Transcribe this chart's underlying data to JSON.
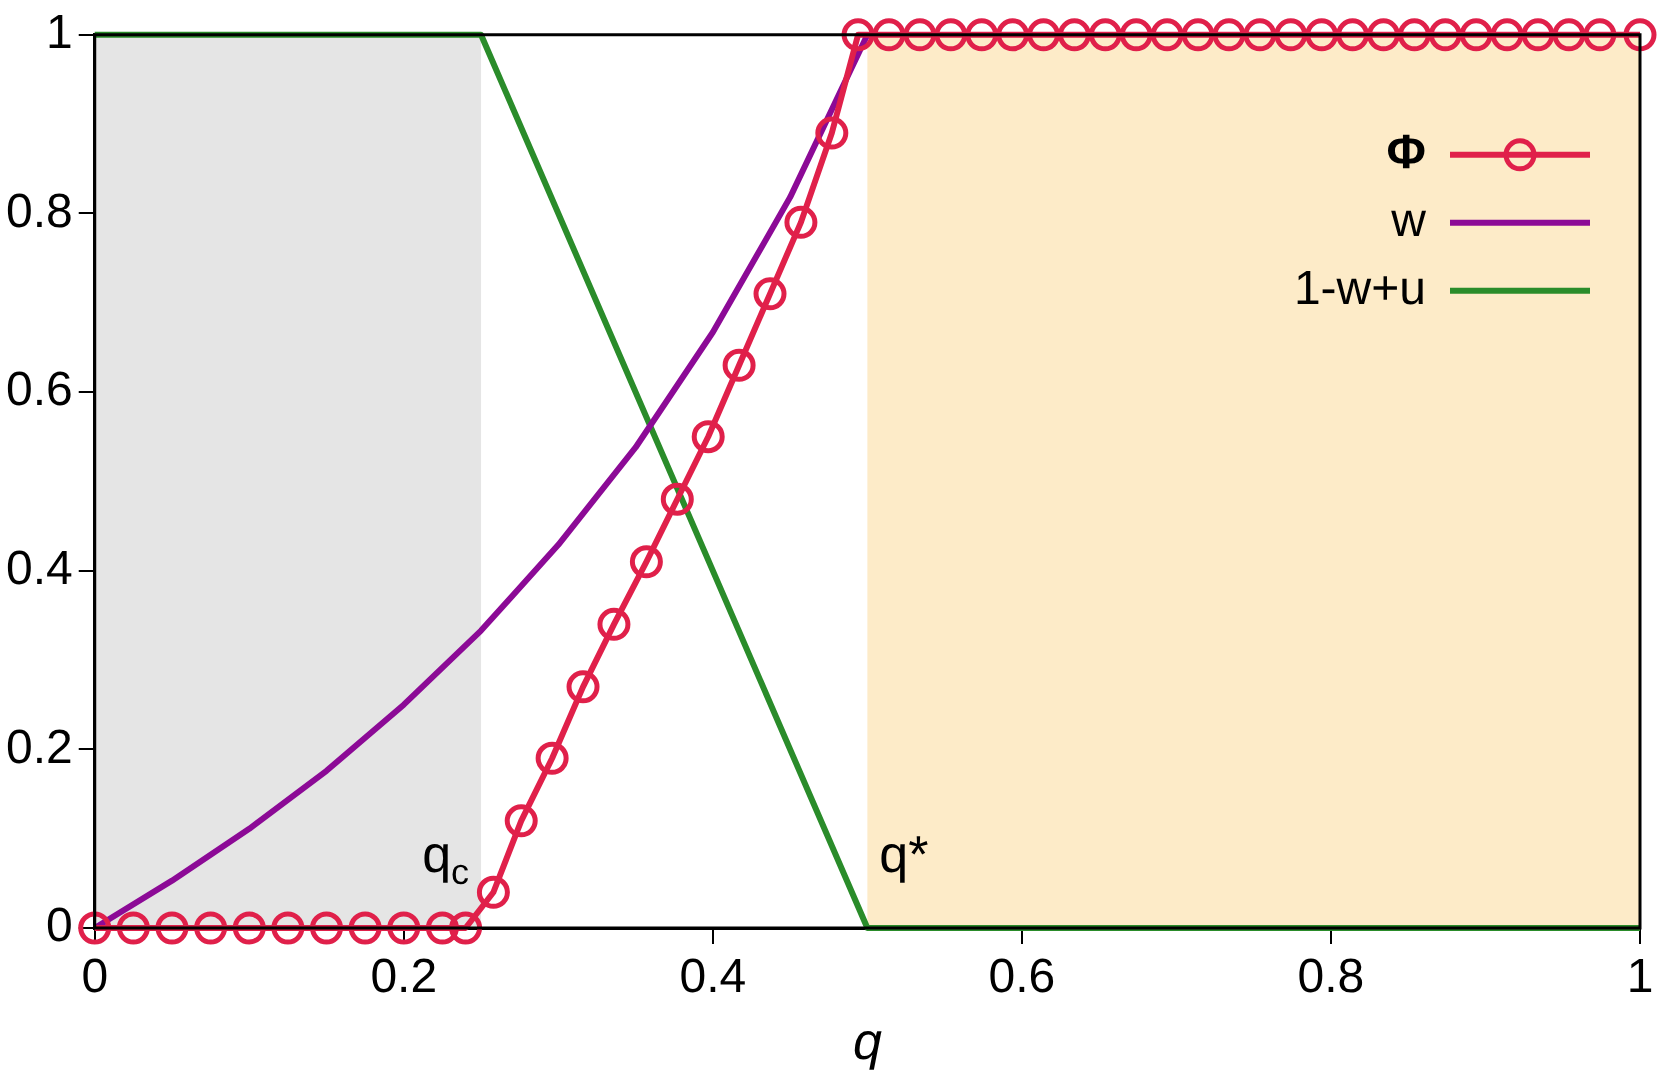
{
  "chart_data": {
    "type": "line",
    "xlabel": "q",
    "xlim": [
      0,
      1
    ],
    "xticks": [
      0,
      0.2,
      0.4,
      0.6,
      0.8,
      1
    ],
    "ylim": [
      0,
      1
    ],
    "yticks": [
      0,
      0.2,
      0.4,
      0.6,
      0.8,
      1
    ],
    "grid": false,
    "legend": "top right",
    "series": [
      {
        "name": "Φ",
        "color": "#e0204a",
        "marker": "circle",
        "x": [
          0,
          0.025,
          0.05,
          0.075,
          0.1,
          0.125,
          0.15,
          0.175,
          0.2,
          0.225,
          0.24,
          0.258,
          0.276,
          0.296,
          0.316,
          0.336,
          0.357,
          0.377,
          0.397,
          0.417,
          0.437,
          0.457,
          0.477,
          0.494,
          0.514,
          0.534,
          0.554,
          0.574,
          0.594,
          0.614,
          0.634,
          0.654,
          0.674,
          0.694,
          0.714,
          0.734,
          0.754,
          0.774,
          0.794,
          0.814,
          0.834,
          0.854,
          0.874,
          0.894,
          0.914,
          0.934,
          0.954,
          0.974,
          1
        ],
        "values": [
          0,
          0,
          0,
          0,
          0,
          0,
          0,
          0,
          0,
          0,
          0,
          0.04,
          0.12,
          0.19,
          0.27,
          0.34,
          0.41,
          0.48,
          0.55,
          0.63,
          0.71,
          0.79,
          0.89,
          1,
          1,
          1,
          1,
          1,
          1,
          1,
          1,
          1,
          1,
          1,
          1,
          1,
          1,
          1,
          1,
          1,
          1,
          1,
          1,
          1,
          1,
          1,
          1,
          1,
          1
        ]
      },
      {
        "name": "w",
        "color": "#8c0a96",
        "marker": "none",
        "x": [
          0,
          0.05,
          0.1,
          0.15,
          0.2,
          0.25,
          0.3,
          0.35,
          0.4,
          0.45,
          0.5
        ],
        "values": [
          0,
          0.053,
          0.111,
          0.176,
          0.25,
          0.333,
          0.429,
          0.538,
          0.667,
          0.818,
          1
        ]
      },
      {
        "name": "1-w+u",
        "color": "#2a8c2a",
        "marker": "none",
        "x": [
          0,
          0.25,
          0.5,
          1
        ],
        "values": [
          1,
          1,
          0,
          0
        ]
      }
    ],
    "bands": [
      {
        "axis": "x",
        "from": 0,
        "to": 0.25,
        "color": "#e5e5e5"
      },
      {
        "axis": "x",
        "from": 0.5,
        "to": 1,
        "color": "#fdebc8"
      }
    ],
    "annotations": [
      {
        "text": "q$_{c}$",
        "x": 0.25,
        "y": 0
      },
      {
        "text": "q*",
        "x": 0.5,
        "y": 0
      }
    ]
  }
}
